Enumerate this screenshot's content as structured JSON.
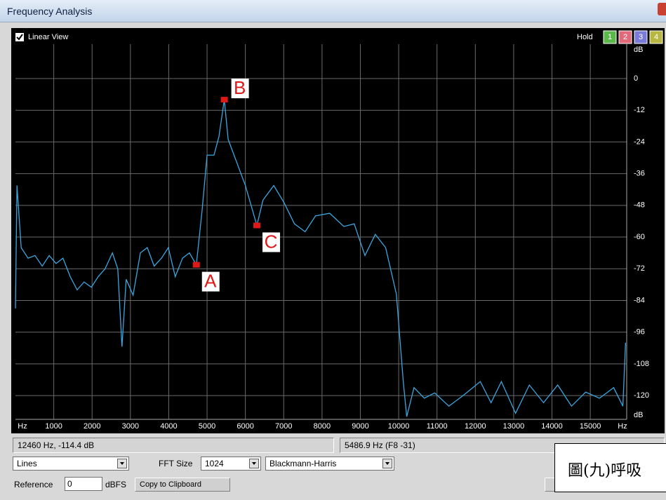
{
  "window": {
    "title": "Frequency Analysis"
  },
  "toolbar": {
    "linear_view": "Linear View",
    "hold": "Hold",
    "hold_buttons": [
      {
        "label": "1",
        "color": "#5cb84a"
      },
      {
        "label": "2",
        "color": "#e06a7a"
      },
      {
        "label": "3",
        "color": "#7a7ad8"
      },
      {
        "label": "4",
        "color": "#b8b840"
      }
    ]
  },
  "chart_data": {
    "type": "line",
    "x_unit": "Hz",
    "y_unit": "dB",
    "x": [
      0,
      40,
      150,
      330,
      510,
      700,
      880,
      1060,
      1240,
      1430,
      1610,
      1790,
      1980,
      2160,
      2340,
      2530,
      2670,
      2780,
      2890,
      3070,
      3260,
      3440,
      3620,
      3810,
      3990,
      4170,
      4360,
      4540,
      4720,
      4870,
      5000,
      5180,
      5310,
      5450,
      5550,
      5730,
      6000,
      6300,
      6460,
      6740,
      7010,
      7280,
      7560,
      7830,
      8200,
      8570,
      8840,
      9120,
      9390,
      9660,
      9940,
      10120,
      10210,
      10400,
      10670,
      10940,
      11310,
      11680,
      12130,
      12410,
      12680,
      13050,
      13410,
      13780,
      14150,
      14510,
      14880,
      15240,
      15610,
      15850,
      15920
    ],
    "series": [
      {
        "color": "#3aa6e0",
        "values": [
          -87,
          -40.5,
          -64,
          -68,
          -67,
          -71,
          -67,
          -70,
          -68,
          -75,
          -80,
          -77,
          -79,
          -75,
          -72,
          -66,
          -72,
          -101.5,
          -76,
          -82,
          -66,
          -64,
          -71,
          -68,
          -64,
          -75,
          -68,
          -66,
          -70.5,
          -50,
          -29,
          -29,
          -22,
          -8,
          -23,
          -30,
          -40.5,
          -55.6,
          -46,
          -40.5,
          -47,
          -55,
          -58,
          -52,
          -51,
          -56,
          -55,
          -67,
          -59,
          -64,
          -81.6,
          -114.7,
          -128,
          -117,
          -121,
          -119,
          -124,
          -120,
          -114.7,
          -122.7,
          -114.7,
          -126.7,
          -116,
          -122.7,
          -116,
          -124,
          -118.7,
          -121,
          -117,
          -124,
          -100
        ]
      }
    ],
    "xlim": [
      0,
      15950
    ],
    "ylim": [
      -129,
      13
    ],
    "xticks": [
      1000,
      2000,
      3000,
      4000,
      5000,
      6000,
      7000,
      8000,
      9000,
      10000,
      11000,
      12000,
      13000,
      14000,
      15000
    ],
    "yticks": [
      0,
      -12,
      -24,
      -36,
      -48,
      -60,
      -72,
      -84,
      -96,
      -108,
      -120
    ],
    "grid": true,
    "marker_color": "#e01818",
    "markers": [
      {
        "label": "A",
        "x": 4720,
        "y": -70.5
      },
      {
        "label": "B",
        "x": 5450,
        "y": -8
      },
      {
        "label": "C",
        "x": 6300,
        "y": -55.6
      }
    ]
  },
  "status": {
    "cursor": "12460 Hz, -114.4 dB",
    "peak": "5486.9 Hz (F8 -31)"
  },
  "controls": {
    "mode": "Lines",
    "fft_label": "FFT Size",
    "fft_size": "1024",
    "window": "Blackmann-Harris",
    "reference_label": "Reference",
    "reference": "0",
    "reference_unit": "dBFS",
    "copy": "Copy to Clipboard"
  },
  "caption": "圖(九)呼吸"
}
